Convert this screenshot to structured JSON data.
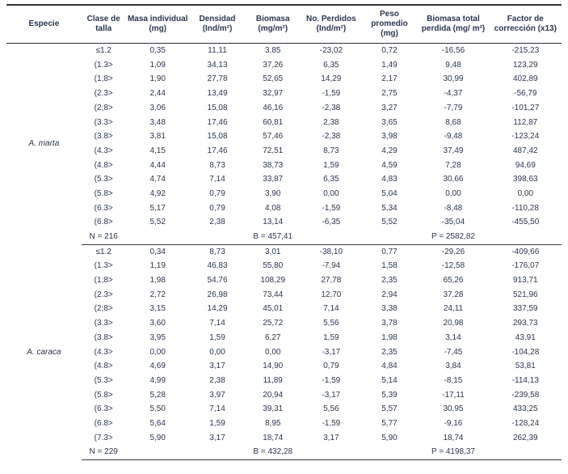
{
  "colors": {
    "text": "#2a3550",
    "rule": "#2e2e38",
    "background": "#ffffff"
  },
  "table": {
    "columns": [
      "Especie",
      "Clase de talla",
      "Masa individual (mg)",
      "Densidad (Ind/m²)",
      "Biomasa (mg/m²)",
      "No. Perdidos (Ind/m²)",
      "Peso promedio (mg)",
      "Biomasa total perdida (mg/ m²)",
      "Factor de corrección (x13)"
    ],
    "groups": [
      {
        "species": "A. marta",
        "rows": [
          [
            "≤1.2",
            "0,35",
            "11,11",
            "3,85",
            "-23,02",
            "0,72",
            "-16,56",
            "-215,23"
          ],
          [
            "(1.3>",
            "1,09",
            "34,13",
            "37,26",
            "6,35",
            "1,49",
            "9,48",
            "123,29"
          ],
          [
            "(1;8>",
            "1,90",
            "27,78",
            "52,65",
            "14,29",
            "2,17",
            "30,99",
            "402,89"
          ],
          [
            "(2.3>",
            "2,44",
            "13,49",
            "32,97",
            "-1,59",
            "2,75",
            "-4,37",
            "-56,79"
          ],
          [
            "(2;8>",
            "3,06",
            "15,08",
            "46,16",
            "-2,38",
            "3,27",
            "-7,79",
            "-101,27"
          ],
          [
            "(3.3>",
            "3,48",
            "17,46",
            "60,81",
            "2,38",
            "3,65",
            "8,68",
            "112,87"
          ],
          [
            "(3.8>",
            "3,81",
            "15,08",
            "57,46",
            "-2,38",
            "3,98",
            "-9,48",
            "-123,24"
          ],
          [
            "(4.3>",
            "4,15",
            "17,46",
            "72,51",
            "8,73",
            "4,29",
            "37,49",
            "487,42"
          ],
          [
            "(4.8>",
            "4,44",
            "8,73",
            "38,73",
            "1,59",
            "4,59",
            "7,28",
            "94,69"
          ],
          [
            "(5.3>",
            "4,74",
            "7,14",
            "33,87",
            "6,35",
            "4,83",
            "30,66",
            "398,63"
          ],
          [
            "(5.8>",
            "4,92",
            "0,79",
            "3,90",
            "0,00",
            "5,04",
            "0,00",
            "0,00"
          ],
          [
            "(6.3>",
            "5,17",
            "0,79",
            "4,08",
            "-1,59",
            "5,34",
            "-8,48",
            "-110,28"
          ],
          [
            "(6.8>",
            "5,52",
            "2,38",
            "13,14",
            "-6,35",
            "5,52",
            "-35,04",
            "-455,50"
          ]
        ],
        "summary": {
          "n": "N = 216",
          "b": "B = 457,41",
          "p": "P = 2582,82"
        }
      },
      {
        "species": "A. caraca",
        "rows": [
          [
            "≤1.2",
            "0,34",
            "8,73",
            "3,01",
            "-38,10",
            "0,77",
            "-29,26",
            "-409,66"
          ],
          [
            "(1.3>",
            "1,19",
            "46,83",
            "55,80",
            "-7,94",
            "1,58",
            "-12,58",
            "-176,07"
          ],
          [
            "(1;8>",
            "1,98",
            "54,76",
            "108,29",
            "27,78",
            "2,35",
            "65,26",
            "913,71"
          ],
          [
            "(2.3>",
            "2,72",
            "26,98",
            "73,44",
            "12,70",
            "2,94",
            "37,28",
            "521,96"
          ],
          [
            "(2;8>",
            "3,15",
            "14,29",
            "45,01",
            "7,14",
            "3,38",
            "24,11",
            "337,59"
          ],
          [
            "(3.3>",
            "3,60",
            "7,14",
            "25,72",
            "5,56",
            "3,78",
            "20,98",
            "293,73"
          ],
          [
            "(3.8>",
            "3,95",
            "1,59",
            "6,27",
            "1,59",
            "1,98",
            "3,14",
            "43,91"
          ],
          [
            "(4.3>",
            "0,00",
            "0,00",
            "0,00",
            "-3,17",
            "2,35",
            "-7,45",
            "-104,28"
          ],
          [
            "(4.8>",
            "4,69",
            "3,17",
            "14,90",
            "0,79",
            "4,84",
            "3,84",
            "53,81"
          ],
          [
            "(5.3>",
            "4,99",
            "2,38",
            "11,89",
            "-1,59",
            "5,14",
            "-8,15",
            "-114,13"
          ],
          [
            "(5.8>",
            "5,28",
            "3,97",
            "20,94",
            "-3,17",
            "5,39",
            "-17,11",
            "-239,58"
          ],
          [
            "(6.3>",
            "5,50",
            "7,14",
            "39,31",
            "5,56",
            "5,57",
            "30,95",
            "433,25"
          ],
          [
            "(6.8>",
            "5,64",
            "1,59",
            "8,95",
            "-1,59",
            "5,77",
            "-9,16",
            "-128,24"
          ],
          [
            "(7.3>",
            "5,90",
            "3,17",
            "18,74",
            "3,17",
            "5,90",
            "18,74",
            "262,39"
          ]
        ],
        "summary": {
          "n": "N = 229",
          "b": "B = 432,28",
          "p": "P = 4198,37"
        }
      }
    ]
  }
}
